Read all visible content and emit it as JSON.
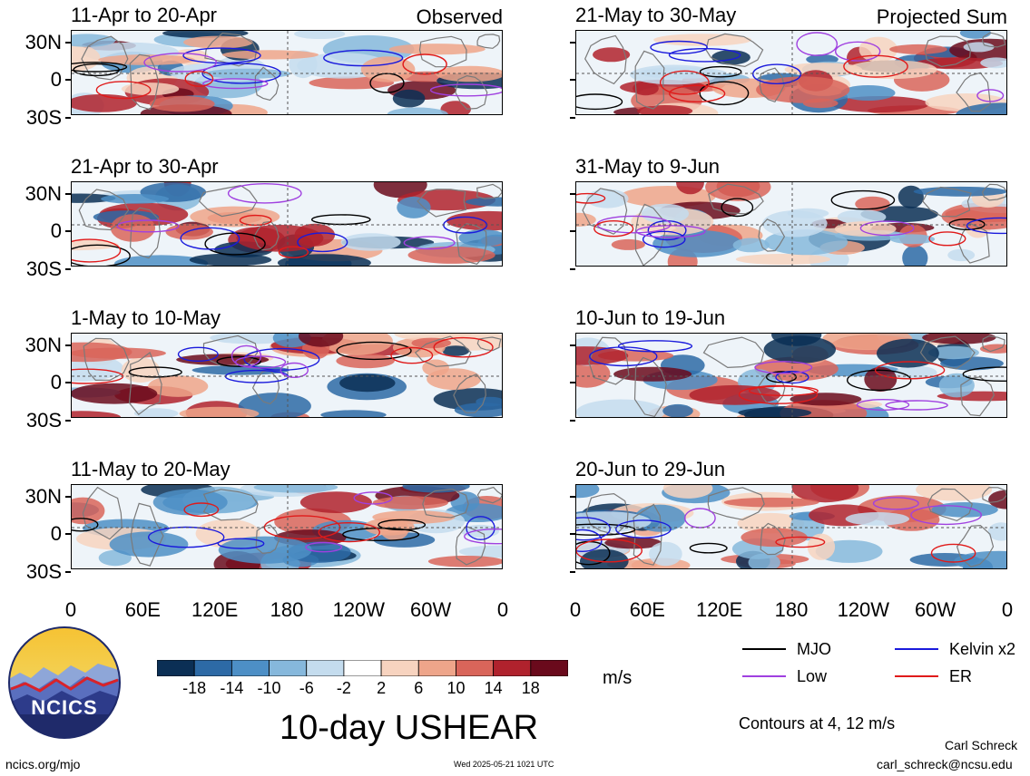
{
  "panels": [
    {
      "title": "11-Apr to 20-Apr",
      "tag": "Observed",
      "col": 0,
      "row": 0
    },
    {
      "title": "21-Apr to 30-Apr",
      "tag": "",
      "col": 0,
      "row": 1
    },
    {
      "title": "1-May to 10-May",
      "tag": "",
      "col": 0,
      "row": 2
    },
    {
      "title": "11-May to 20-May",
      "tag": "",
      "col": 0,
      "row": 3
    },
    {
      "title": "21-May to 30-May",
      "tag": "Projected Sum",
      "col": 1,
      "row": 0
    },
    {
      "title": "31-May to 9-Jun",
      "tag": "",
      "col": 1,
      "row": 1
    },
    {
      "title": "10-Jun to 19-Jun",
      "tag": "",
      "col": 1,
      "row": 2
    },
    {
      "title": "20-Jun to 29-Jun",
      "tag": "",
      "col": 1,
      "row": 3
    }
  ],
  "y_ticks": [
    "30N",
    "0",
    "30S"
  ],
  "x_ticks": [
    "0",
    "60E",
    "120E",
    "180",
    "120W",
    "60W",
    "0"
  ],
  "colorbar": {
    "labels": [
      "-18",
      "-14",
      "-10",
      "-6",
      "-2",
      "2",
      "6",
      "10",
      "14",
      "18"
    ],
    "colors": [
      "#0b2f55",
      "#2d6aa6",
      "#4d8fc6",
      "#86b8dc",
      "#c4dcee",
      "#ffffff",
      "#f7d3bf",
      "#eea58a",
      "#d9655a",
      "#b0222d",
      "#6a0a1c"
    ],
    "unit": "m/s"
  },
  "legend": {
    "items": [
      {
        "label": "MJO",
        "color": "#000000"
      },
      {
        "label": "Kelvin x2",
        "color": "#1a1adc"
      },
      {
        "label": "Low",
        "color": "#a040e0"
      },
      {
        "label": "ER",
        "color": "#e01a1a"
      }
    ],
    "contours_note": "Contours at 4, 12 m/s"
  },
  "main_title": "10-day USHEAR",
  "logo_text": "NCICS",
  "footer": {
    "url": "ncics.org/mjo",
    "timestamp": "Wed 2025-05-21 1021 UTC",
    "author": "Carl Schreck",
    "email": "carl_schreck@ncsu.edu"
  },
  "chart_data": {
    "type": "heatmap",
    "title": "10-day USHEAR",
    "variable": "zonal wind shear anomaly (shaded) with filtered-wave contours",
    "unit": "m/s",
    "x_ticks": [
      "0",
      "60E",
      "120E",
      "180",
      "120W",
      "60W",
      "0"
    ],
    "y_ticks": [
      "30N",
      "0",
      "30S"
    ],
    "ylim": [
      -40,
      40
    ],
    "shading_levels": [
      -18,
      -14,
      -10,
      -6,
      -2,
      2,
      6,
      10,
      14,
      18
    ],
    "contour_levels": [
      4,
      12
    ],
    "series": [
      {
        "name": "MJO",
        "color": "#000000"
      },
      {
        "name": "Kelvin x2",
        "color": "#1a1adc"
      },
      {
        "name": "Low",
        "color": "#a040e0"
      },
      {
        "name": "ER",
        "color": "#e01a1a"
      }
    ],
    "periods": [
      {
        "label": "11-Apr to 20-Apr",
        "kind": "Observed"
      },
      {
        "label": "21-Apr to 30-Apr",
        "kind": "Observed"
      },
      {
        "label": "1-May to 10-May",
        "kind": "Observed"
      },
      {
        "label": "11-May to 20-May",
        "kind": "Observed"
      },
      {
        "label": "21-May to 30-May",
        "kind": "Projected Sum"
      },
      {
        "label": "31-May to 9-Jun",
        "kind": "Projected Sum"
      },
      {
        "label": "10-Jun to 19-Jun",
        "kind": "Projected Sum"
      },
      {
        "label": "20-Jun to 29-Jun",
        "kind": "Projected Sum"
      }
    ]
  }
}
